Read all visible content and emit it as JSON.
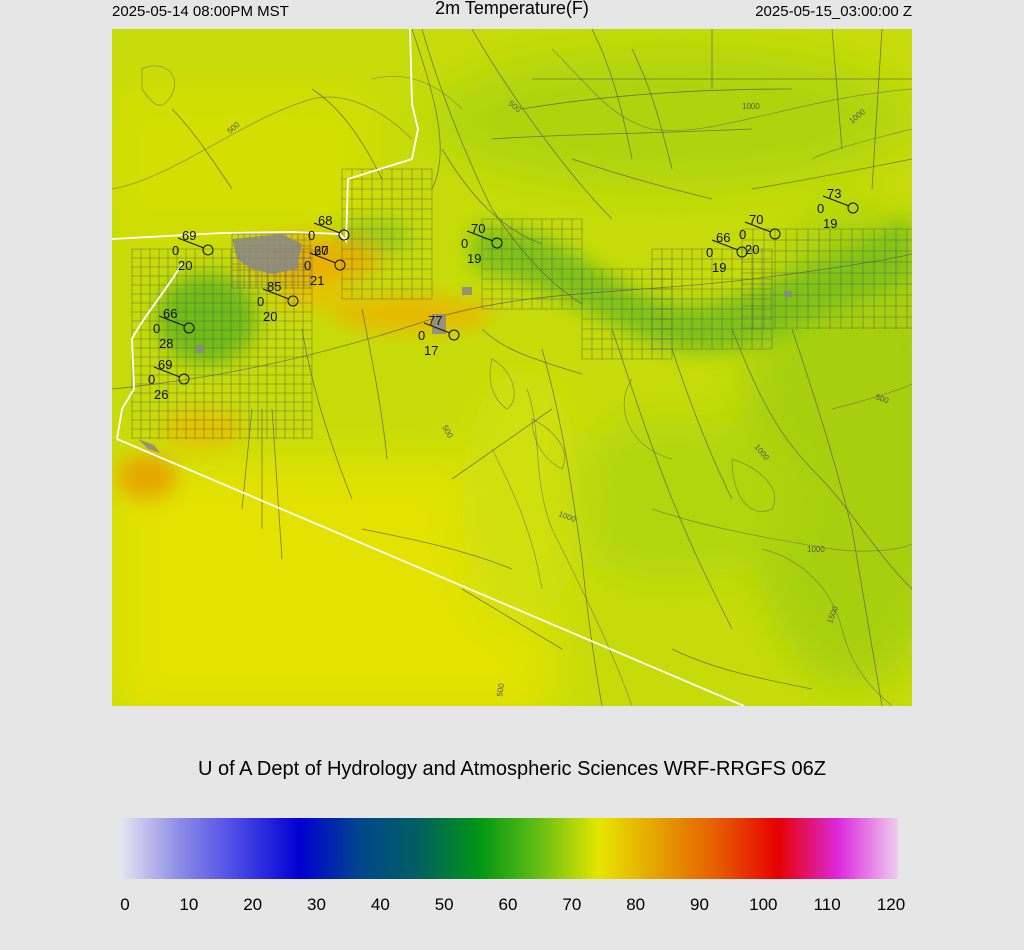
{
  "header": {
    "local_time": "2025-05-14 08:00PM MST",
    "title": "2m Temperature(F)",
    "utc_time": "2025-05-15_03:00:00 Z"
  },
  "credit": "U of A Dept of Hydrology and Atmospheric Sciences WRF-RRGFS 06Z",
  "colorbar": {
    "ticks": [
      "0",
      "10",
      "20",
      "30",
      "40",
      "50",
      "60",
      "70",
      "80",
      "90",
      "100",
      "110",
      "120"
    ],
    "colors": [
      "#e6e6f2",
      "#8c8ce6",
      "#4646e6",
      "#0000d2",
      "#00468c",
      "#006060",
      "#009614",
      "#64be14",
      "#e6e600",
      "#e6a000",
      "#e65a00",
      "#e60000",
      "#dc28dc",
      "#eecdee"
    ]
  },
  "map": {
    "contour_labels": [
      "500",
      "500",
      "500",
      "500",
      "500",
      "1000",
      "1000",
      "1000",
      "1000",
      "1000",
      "1500"
    ],
    "stations": [
      {
        "temp": "69",
        "dew": "20",
        "wind": "0"
      },
      {
        "temp": "68",
        "dew": "20",
        "wind": "0"
      },
      {
        "temp": "67",
        "dew": "21",
        "wind": "0"
      },
      {
        "temp": "85",
        "dew": "20",
        "wind": "0"
      },
      {
        "temp": "66",
        "dew": "28",
        "wind": "0"
      },
      {
        "temp": "69",
        "dew": "26",
        "wind": "0"
      },
      {
        "temp": "77",
        "dew": "17",
        "wind": "0"
      },
      {
        "temp": "70",
        "dew": "19",
        "wind": "0"
      },
      {
        "temp": "66",
        "dew": "19",
        "wind": "0"
      },
      {
        "temp": "70",
        "dew": "20",
        "wind": "0"
      },
      {
        "temp": "73",
        "dew": "19",
        "wind": "0"
      }
    ]
  }
}
